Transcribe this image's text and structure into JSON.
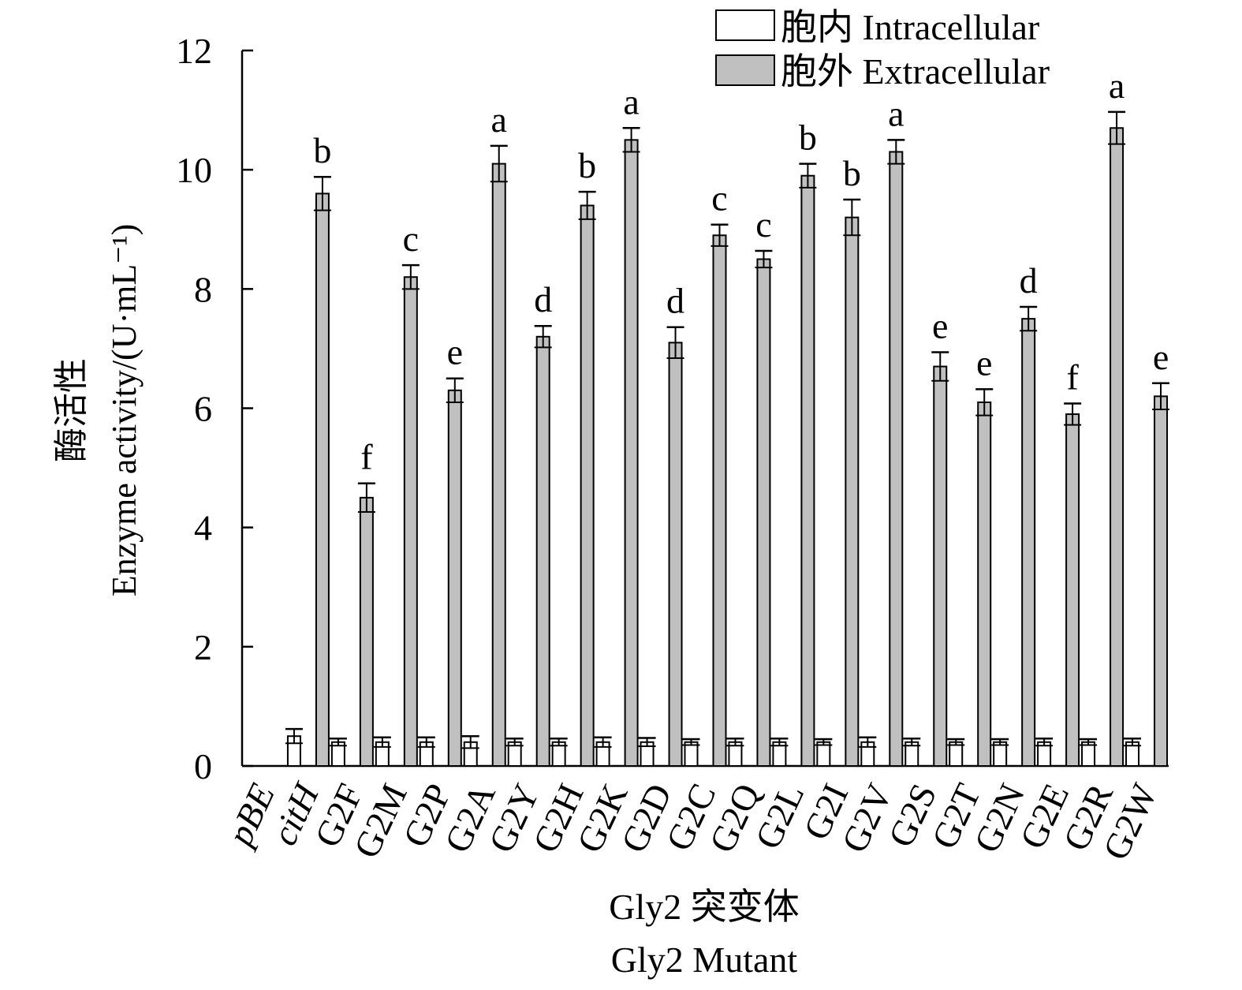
{
  "chart_data": {
    "type": "bar",
    "ylabel_cn": "酶活性",
    "ylabel_en": "Enzyme activity/(U·mL⁻¹)",
    "xlabel_cn": "Gly2 突变体",
    "xlabel_en": "Gly2 Mutant",
    "ylim": [
      0,
      12
    ],
    "yticks": [
      "0",
      "2",
      "4",
      "6",
      "8",
      "10",
      "12"
    ],
    "legend_position": "top-right",
    "categories": [
      "pBE",
      "citH",
      "G2F",
      "G2M",
      "G2P",
      "G2A",
      "G2Y",
      "G2H",
      "G2K",
      "G2D",
      "G2C",
      "G2Q",
      "G2L",
      "G2I",
      "G2V",
      "G2S",
      "G2T",
      "G2N",
      "G2E",
      "G2R",
      "G2W"
    ],
    "italic_categories": [
      "pBE",
      "citH"
    ],
    "series": [
      {
        "name": "胞内 Intracellular",
        "color": "#ffffff",
        "values": [
          0,
          0.5,
          0.4,
          0.4,
          0.4,
          0.4,
          0.4,
          0.4,
          0.4,
          0.4,
          0.4,
          0.4,
          0.4,
          0.4,
          0.4,
          0.4,
          0.4,
          0.4,
          0.4,
          0.4,
          0.4
        ],
        "errors": [
          0,
          0.12,
          0.06,
          0.08,
          0.08,
          0.1,
          0.06,
          0.06,
          0.08,
          0.07,
          0.05,
          0.06,
          0.06,
          0.05,
          0.08,
          0.06,
          0.05,
          0.05,
          0.06,
          0.05,
          0.06
        ]
      },
      {
        "name": "胞外 Extracellular",
        "color": "#c0c0c0",
        "values": [
          0,
          9.6,
          4.5,
          8.2,
          6.3,
          10.1,
          7.2,
          9.4,
          10.5,
          7.1,
          8.9,
          8.5,
          9.9,
          9.2,
          10.3,
          6.7,
          6.1,
          7.5,
          5.9,
          10.7,
          6.2
        ],
        "errors": [
          0,
          0.28,
          0.24,
          0.2,
          0.2,
          0.3,
          0.18,
          0.23,
          0.2,
          0.26,
          0.18,
          0.14,
          0.2,
          0.3,
          0.2,
          0.24,
          0.22,
          0.2,
          0.18,
          0.27,
          0.22
        ],
        "significance": [
          "",
          "b",
          "f",
          "c",
          "e",
          "a",
          "d",
          "b",
          "a",
          "d",
          "c",
          "c",
          "b",
          "b",
          "a",
          "e",
          "e",
          "d",
          "f",
          "a",
          "e"
        ]
      }
    ]
  }
}
